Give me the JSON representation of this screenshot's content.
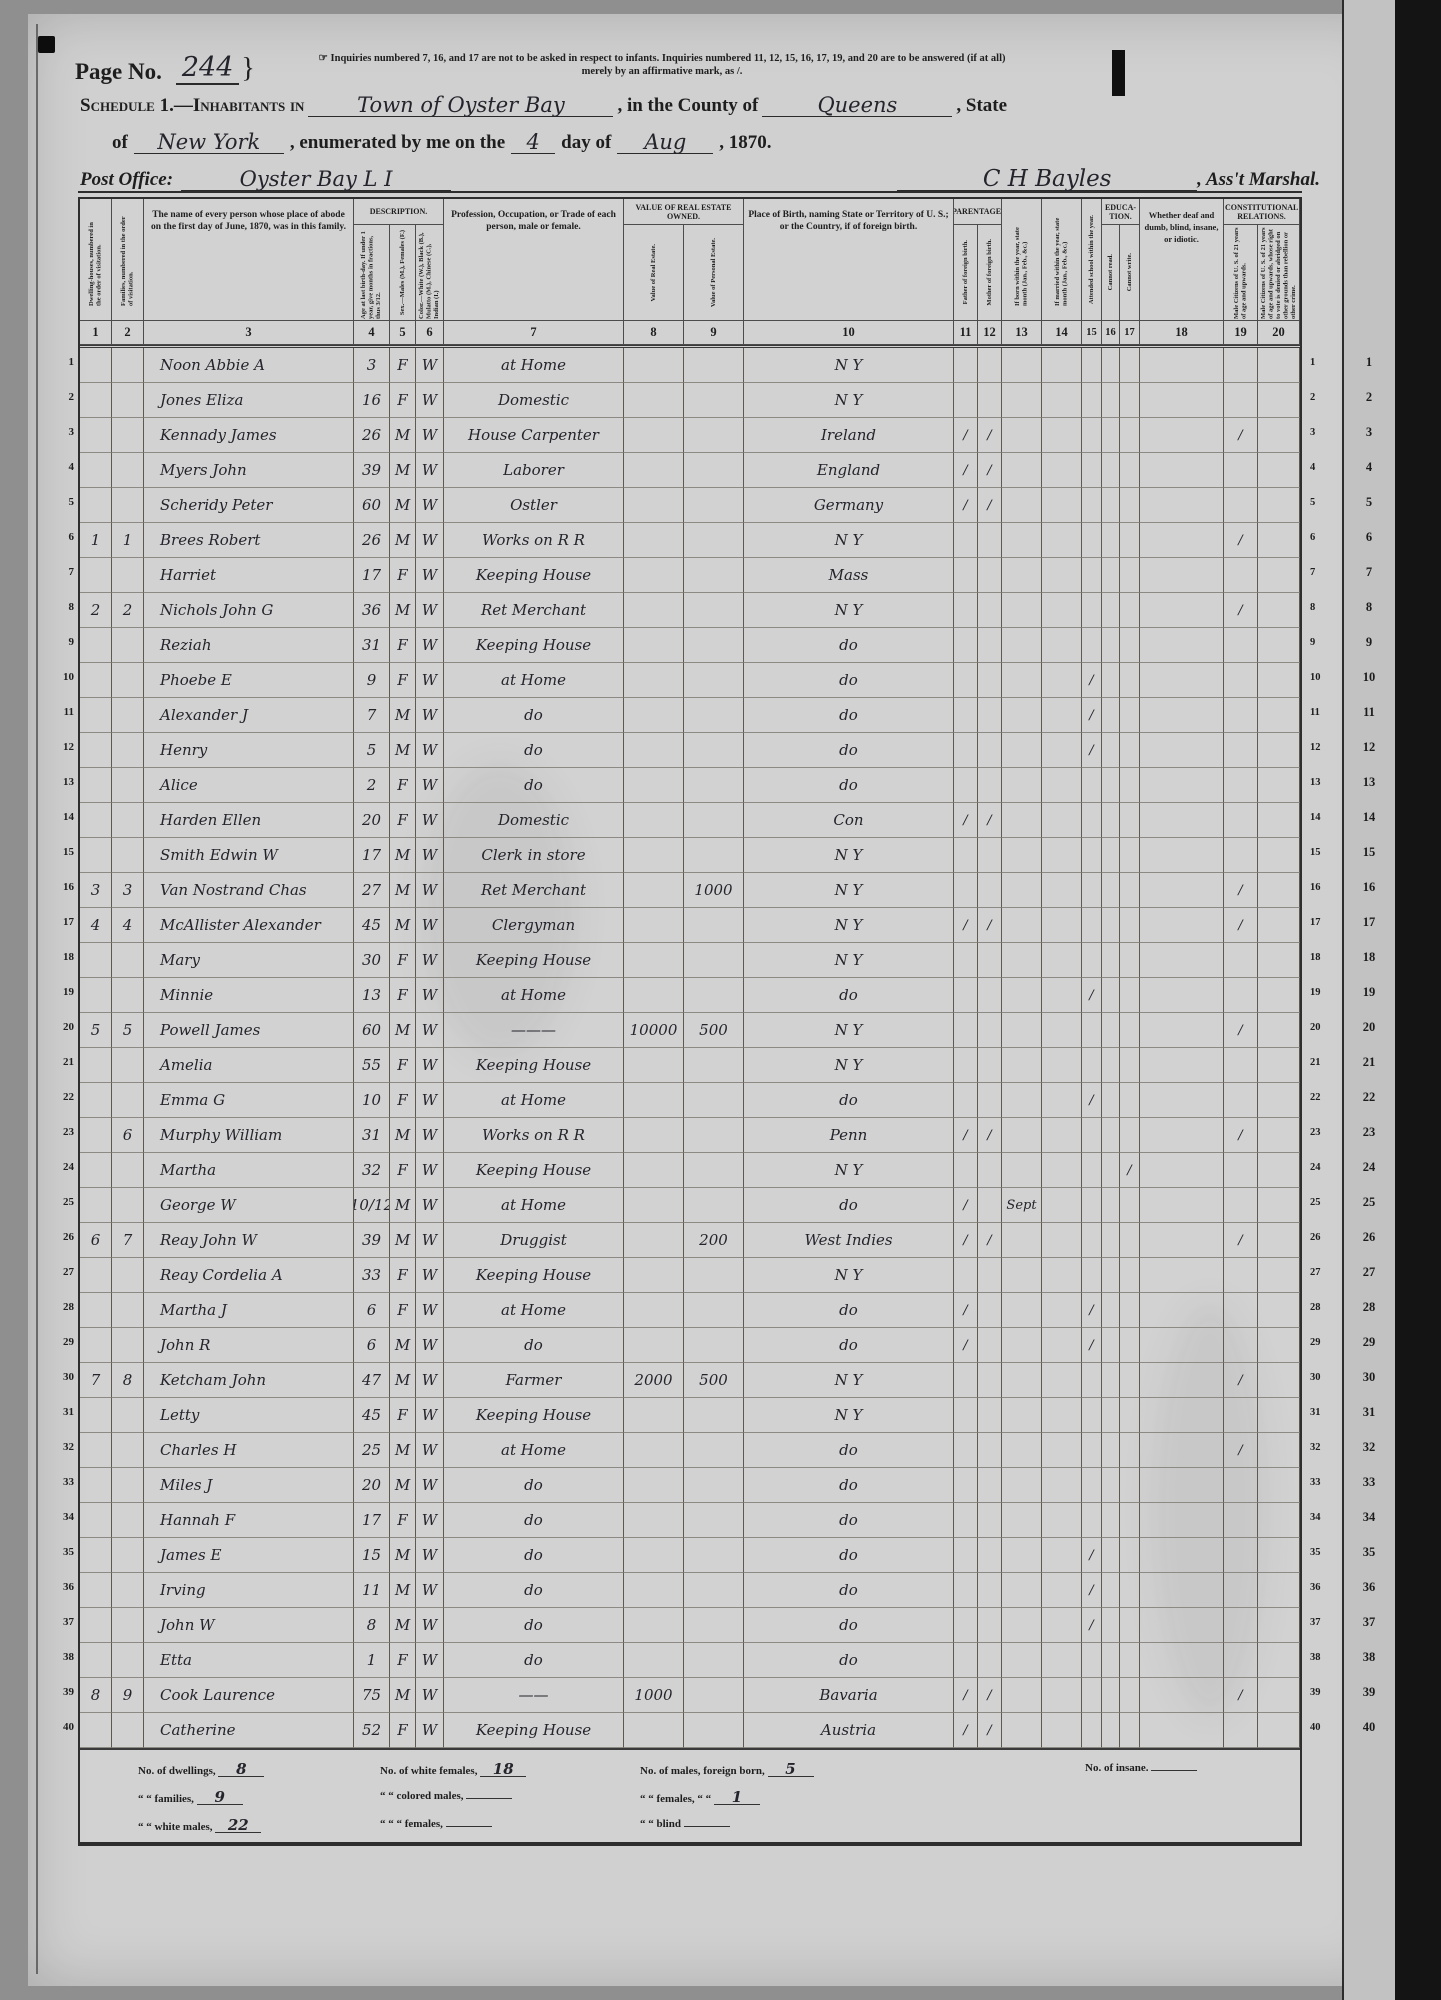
{
  "page": {
    "page_no_label": "Page No.",
    "page_no_value": "244",
    "brace": "}",
    "note_line1": "☞ Inquiries numbered 7, 16, and 17 are not to be asked in respect to infants.   Inquiries numbered 11, 12, 15, 16, 17, 19, and 20 are to be answered (if at all)",
    "note_line2": "merely by an affirmative mark, as /.",
    "schedule_prefix": "Schedule 1.—Inhabitants in",
    "schedule_place": "Town of Oyster Bay",
    "county_label": ", in the County of",
    "county_value": "Queens",
    "state_label": ", State",
    "of_label": "of",
    "state_value": "New York",
    "enumerated_label": ", enumerated by me on the",
    "day_value": "4",
    "day_label": "day of",
    "month_value": "Aug",
    "year_label": ", 1870.",
    "post_office_label": "Post Office:",
    "post_office_value": "Oyster Bay L I",
    "marshal_signature": "C H Bayles",
    "marshal_label": ", Ass't Marshal."
  },
  "table": {
    "groups": {
      "description": "DESCRIPTION.",
      "real_estate": "VALUE OF REAL ESTATE OWNED.",
      "parentage": "PARENTAGE.",
      "education": "EDUCA- TION.",
      "constitutional": "CONSTITUTIONAL RELATIONS."
    },
    "columns": [
      {
        "num": "1",
        "heading": "Dwelling-houses, numbered in the order of visitation."
      },
      {
        "num": "2",
        "heading": "Families, numbered in the order of visitation."
      },
      {
        "num": "3",
        "heading": "The name of every person whose place of abode on the first day of June, 1870, was in this family."
      },
      {
        "num": "4",
        "heading": "Age at last birth-day. If under 1 year, give months in fractions, thus 3/12."
      },
      {
        "num": "5",
        "heading": "Sex.—Males (M.), Females (F.)"
      },
      {
        "num": "6",
        "heading": "Color.—White (W.), Black (B.), Mulatto (M.), Chinese (C.), Indian (I.)"
      },
      {
        "num": "7",
        "heading": "Profession, Occupation, or Trade of each person, male or female."
      },
      {
        "num": "8",
        "heading": "Value of Real Estate."
      },
      {
        "num": "9",
        "heading": "Value of Personal Estate."
      },
      {
        "num": "10",
        "heading": "Place of Birth, naming State or Territory of U. S.; or the Country, if of foreign birth."
      },
      {
        "num": "11",
        "heading": "Father of foreign birth."
      },
      {
        "num": "12",
        "heading": "Mother of foreign birth."
      },
      {
        "num": "13",
        "heading": "If born within the year, state month (Jan., Feb., &c.)"
      },
      {
        "num": "14",
        "heading": "If married within the year, state month (Jan., Feb., &c.)"
      },
      {
        "num": "15",
        "heading": "Attended school within the year."
      },
      {
        "num": "16",
        "heading": "Cannot read."
      },
      {
        "num": "17",
        "heading": "Cannot write."
      },
      {
        "num": "18",
        "heading": "Whether deaf and dumb, blind, insane, or idiotic."
      },
      {
        "num": "19",
        "heading": "Male Citizens of U. S. of 21 years of age and upwards."
      },
      {
        "num": "20",
        "heading": "Male Citizens of U. S. of 21 years of age and upwards, whose right to vote is denied or abridged on other grounds than rebellion or other crime."
      }
    ],
    "rows": [
      {
        "name": "Noon Abbie A",
        "age": "3",
        "sex": "F",
        "col": "W",
        "occ": "at Home",
        "birth": "N Y"
      },
      {
        "name": "Jones Eliza",
        "age": "16",
        "sex": "F",
        "col": "W",
        "occ": "Domestic",
        "birth": "N Y"
      },
      {
        "name": "Kennady James",
        "age": "26",
        "sex": "M",
        "col": "W",
        "occ": "House Carpenter",
        "birth": "Ireland",
        "c11": "/",
        "c12": "/",
        "c19": "/"
      },
      {
        "name": "Myers John",
        "age": "39",
        "sex": "M",
        "col": "W",
        "occ": "Laborer",
        "birth": "England",
        "c11": "/",
        "c12": "/"
      },
      {
        "name": "Scheridy Peter",
        "age": "60",
        "sex": "M",
        "col": "W",
        "occ": "Ostler",
        "birth": "Germany",
        "c11": "/",
        "c12": "/"
      },
      {
        "dw": "1",
        "fam": "1",
        "name": "Brees Robert",
        "age": "26",
        "sex": "M",
        "col": "W",
        "occ": "Works on R R",
        "birth": "N Y",
        "c19": "/"
      },
      {
        "name": "Harriet",
        "age": "17",
        "sex": "F",
        "col": "W",
        "occ": "Keeping House",
        "birth": "Mass"
      },
      {
        "dw": "2",
        "fam": "2",
        "name": "Nichols John G",
        "age": "36",
        "sex": "M",
        "col": "W",
        "occ": "Ret Merchant",
        "birth": "N Y",
        "c19": "/"
      },
      {
        "name": "Reziah",
        "age": "31",
        "sex": "F",
        "col": "W",
        "occ": "Keeping House",
        "birth": "do"
      },
      {
        "name": "Phoebe E",
        "age": "9",
        "sex": "F",
        "col": "W",
        "occ": "at Home",
        "birth": "do",
        "c15": "/"
      },
      {
        "name": "Alexander J",
        "age": "7",
        "sex": "M",
        "col": "W",
        "occ": "do",
        "birth": "do",
        "c15": "/"
      },
      {
        "name": "Henry",
        "age": "5",
        "sex": "M",
        "col": "W",
        "occ": "do",
        "birth": "do",
        "c15": "/"
      },
      {
        "name": "Alice",
        "age": "2",
        "sex": "F",
        "col": "W",
        "occ": "do",
        "birth": "do"
      },
      {
        "name": "Harden Ellen",
        "age": "20",
        "sex": "F",
        "col": "W",
        "occ": "Domestic",
        "birth": "Con",
        "c11": "/",
        "c12": "/"
      },
      {
        "name": "Smith Edwin W",
        "age": "17",
        "sex": "M",
        "col": "W",
        "occ": "Clerk in store",
        "birth": "N Y"
      },
      {
        "dw": "3",
        "fam": "3",
        "name": "Van Nostrand Chas",
        "age": "27",
        "sex": "M",
        "col": "W",
        "occ": "Ret Merchant",
        "pe": "1000",
        "birth": "N Y",
        "c19": "/"
      },
      {
        "dw": "4",
        "fam": "4",
        "name": "McAllister Alexander",
        "age": "45",
        "sex": "M",
        "col": "W",
        "occ": "Clergyman",
        "birth": "N Y",
        "c11": "/",
        "c12": "/",
        "c19": "/"
      },
      {
        "name": "Mary",
        "age": "30",
        "sex": "F",
        "col": "W",
        "occ": "Keeping House",
        "birth": "N Y"
      },
      {
        "name": "Minnie",
        "age": "13",
        "sex": "F",
        "col": "W",
        "occ": "at Home",
        "birth": "do",
        "c15": "/"
      },
      {
        "dw": "5",
        "fam": "5",
        "name": "Powell James",
        "age": "60",
        "sex": "M",
        "col": "W",
        "occ": "———",
        "re": "10000",
        "pe": "500",
        "birth": "N Y",
        "c19": "/"
      },
      {
        "name": "Amelia",
        "age": "55",
        "sex": "F",
        "col": "W",
        "occ": "Keeping House",
        "birth": "N Y"
      },
      {
        "name": "Emma G",
        "age": "10",
        "sex": "F",
        "col": "W",
        "occ": "at Home",
        "birth": "do",
        "c15": "/"
      },
      {
        "fam": "6",
        "name": "Murphy William",
        "age": "31",
        "sex": "M",
        "col": "W",
        "occ": "Works on R R",
        "birth": "Penn",
        "c11": "/",
        "c12": "/",
        "c19": "/"
      },
      {
        "name": "Martha",
        "age": "32",
        "sex": "F",
        "col": "W",
        "occ": "Keeping House",
        "birth": "N Y",
        "c17": "/"
      },
      {
        "name": "George W",
        "age": "10/12",
        "sex": "M",
        "col": "W",
        "occ": "at Home",
        "birth": "do",
        "c11": "/",
        "c13": "Sept"
      },
      {
        "dw": "6",
        "fam": "7",
        "name": "Reay John W",
        "age": "39",
        "sex": "M",
        "col": "W",
        "occ": "Druggist",
        "pe": "200",
        "birth": "West Indies",
        "c11": "/",
        "c12": "/",
        "c19": "/"
      },
      {
        "name": "Reay Cordelia A",
        "age": "33",
        "sex": "F",
        "col": "W",
        "occ": "Keeping House",
        "birth": "N Y"
      },
      {
        "name": "Martha J",
        "age": "6",
        "sex": "F",
        "col": "W",
        "occ": "at Home",
        "birth": "do",
        "c11": "/",
        "c15": "/"
      },
      {
        "name": "John R",
        "age": "6",
        "sex": "M",
        "col": "W",
        "occ": "do",
        "birth": "do",
        "c11": "/",
        "c15": "/"
      },
      {
        "dw": "7",
        "fam": "8",
        "name": "Ketcham John",
        "age": "47",
        "sex": "M",
        "col": "W",
        "occ": "Farmer",
        "re": "2000",
        "pe": "500",
        "birth": "N Y",
        "c19": "/"
      },
      {
        "name": "Letty",
        "age": "45",
        "sex": "F",
        "col": "W",
        "occ": "Keeping House",
        "birth": "N Y"
      },
      {
        "name": "Charles H",
        "age": "25",
        "sex": "M",
        "col": "W",
        "occ": "at Home",
        "birth": "do",
        "c19": "/"
      },
      {
        "name": "Miles J",
        "age": "20",
        "sex": "M",
        "col": "W",
        "occ": "do",
        "birth": "do"
      },
      {
        "name": "Hannah F",
        "age": "17",
        "sex": "F",
        "col": "W",
        "occ": "do",
        "birth": "do"
      },
      {
        "name": "James E",
        "age": "15",
        "sex": "M",
        "col": "W",
        "occ": "do",
        "birth": "do",
        "c15": "/"
      },
      {
        "name": "Irving",
        "age": "11",
        "sex": "M",
        "col": "W",
        "occ": "do",
        "birth": "do",
        "c15": "/"
      },
      {
        "name": "John W",
        "age": "8",
        "sex": "M",
        "col": "W",
        "occ": "do",
        "birth": "do",
        "c15": "/"
      },
      {
        "name": "Etta",
        "age": "1",
        "sex": "F",
        "col": "W",
        "occ": "do",
        "birth": "do"
      },
      {
        "dw": "8",
        "fam": "9",
        "name": "Cook Laurence",
        "age": "75",
        "sex": "M",
        "col": "W",
        "occ": "——",
        "re": "1000",
        "birth": "Bavaria",
        "c11": "/",
        "c12": "/",
        "c19": "/"
      },
      {
        "name": "Catherine",
        "age": "52",
        "sex": "F",
        "col": "W",
        "occ": "Keeping House",
        "birth": "Austria",
        "c11": "/",
        "c12": "/"
      }
    ]
  },
  "footer": {
    "col1": [
      {
        "label": "No. of dwellings,",
        "value": "8"
      },
      {
        "label": "“  “ families,",
        "value": "9"
      },
      {
        "label": "“  “ white males,",
        "value": "22"
      }
    ],
    "col2": [
      {
        "label": "No. of white females,",
        "value": "18"
      },
      {
        "label": "“  “ colored males,",
        "value": ""
      },
      {
        "label": "“  “   “   females,",
        "value": ""
      }
    ],
    "col3": [
      {
        "label": "No. of males, foreign born,",
        "value": "5"
      },
      {
        "label": "“  “ females,  “   “",
        "value": "1"
      },
      {
        "label": "“  “ blind",
        "value": ""
      }
    ],
    "insane": {
      "label": "No. of insane.",
      "value": ""
    }
  },
  "margins": {
    "row_numbers": [
      1,
      2,
      3,
      4,
      5,
      6,
      7,
      8,
      9,
      10,
      11,
      12,
      13,
      14,
      15,
      16,
      17,
      18,
      19,
      20,
      21,
      22,
      23,
      24,
      25,
      26,
      27,
      28,
      29,
      30,
      31,
      32,
      33,
      34,
      35,
      36,
      37,
      38,
      39,
      40
    ]
  }
}
